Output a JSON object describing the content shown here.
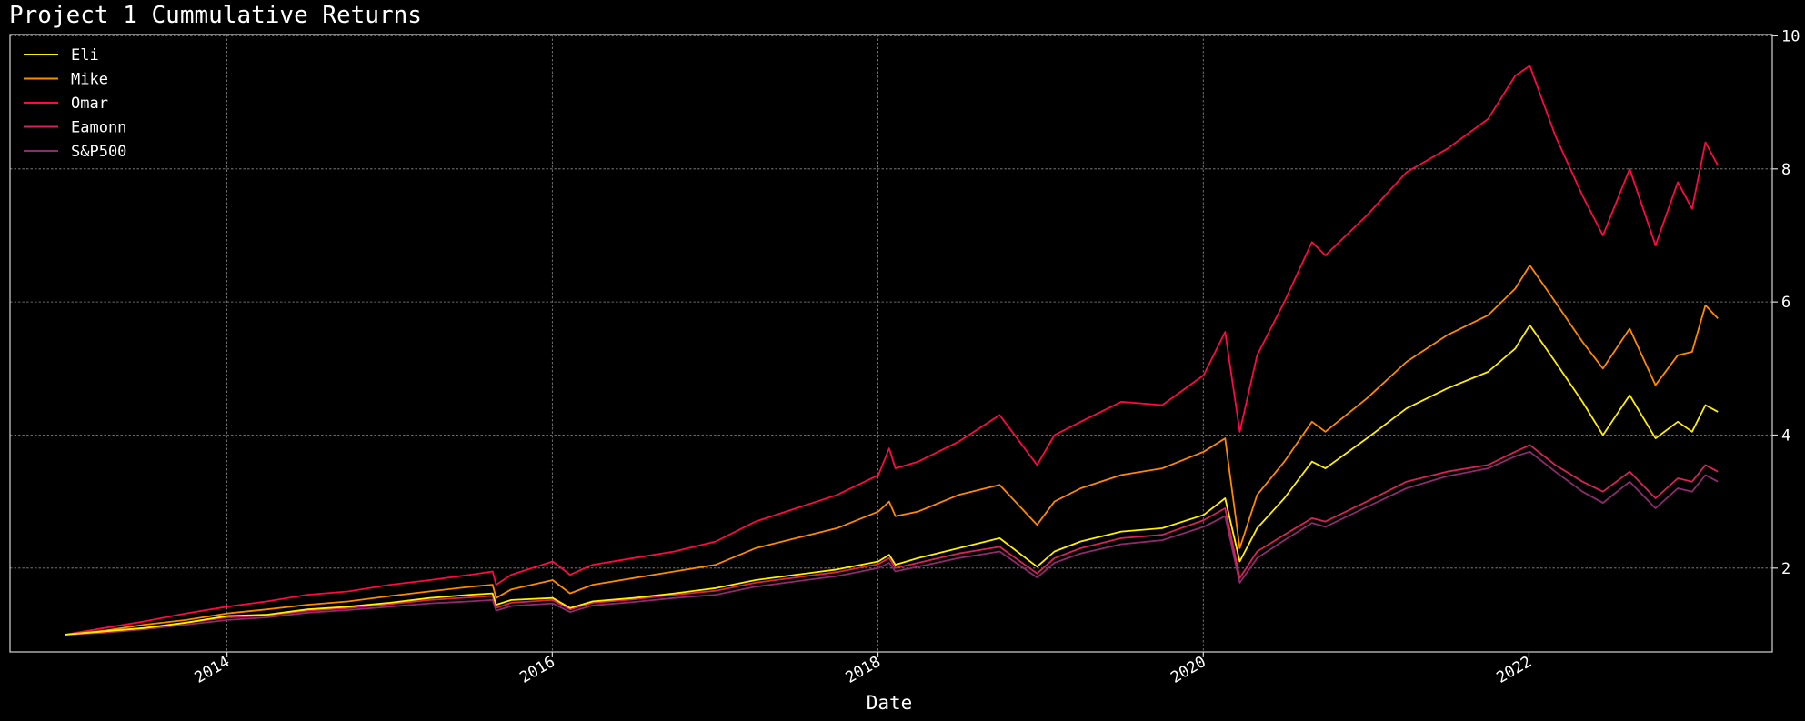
{
  "chart_data": {
    "type": "line",
    "title": "Project 1 Cummulative Returns",
    "xlabel": "Date",
    "ylabel": "",
    "xlim": [
      "2012-09-01",
      "2023-07-01"
    ],
    "ylim": [
      0.74,
      10.02
    ],
    "x_ticks": [
      "2014",
      "2016",
      "2018",
      "2020",
      "2022"
    ],
    "y_ticks": [
      2,
      4,
      6,
      8,
      10
    ],
    "y_axis_position": "right",
    "grid": true,
    "legend_position": "top-left",
    "series": [
      {
        "name": "Eli",
        "color": "#ffee00",
        "x": [
          "2013-01-02",
          "2013-04-01",
          "2013-07-01",
          "2013-10-01",
          "2014-01-02",
          "2014-04-01",
          "2014-07-01",
          "2014-10-01",
          "2015-01-02",
          "2015-04-01",
          "2015-07-01",
          "2015-08-20",
          "2015-08-28",
          "2015-10-01",
          "2016-01-02",
          "2016-02-10",
          "2016-04-01",
          "2016-07-01",
          "2016-10-01",
          "2017-01-02",
          "2017-04-01",
          "2017-07-01",
          "2017-10-01",
          "2018-01-02",
          "2018-01-26",
          "2018-02-09",
          "2018-04-01",
          "2018-07-01",
          "2018-10-01",
          "2018-12-24",
          "2019-02-01",
          "2019-04-01",
          "2019-07-01",
          "2019-10-01",
          "2020-01-02",
          "2020-02-19",
          "2020-03-23",
          "2020-05-01",
          "2020-07-01",
          "2020-09-01",
          "2020-10-01",
          "2021-01-02",
          "2021-04-01",
          "2021-07-01",
          "2021-10-01",
          "2021-12-01",
          "2022-01-03",
          "2022-03-01",
          "2022-05-01",
          "2022-06-16",
          "2022-08-15",
          "2022-10-12",
          "2022-12-01",
          "2023-01-02",
          "2023-02-01",
          "2023-03-01"
        ],
        "y": [
          1.0,
          1.05,
          1.1,
          1.18,
          1.28,
          1.3,
          1.38,
          1.42,
          1.48,
          1.55,
          1.6,
          1.62,
          1.45,
          1.52,
          1.55,
          1.4,
          1.5,
          1.55,
          1.62,
          1.7,
          1.82,
          1.9,
          1.98,
          2.1,
          2.2,
          2.05,
          2.15,
          2.3,
          2.45,
          2.02,
          2.25,
          2.4,
          2.55,
          2.6,
          2.8,
          3.05,
          2.1,
          2.6,
          3.05,
          3.6,
          3.5,
          3.95,
          4.4,
          4.7,
          4.95,
          5.3,
          5.65,
          5.1,
          4.5,
          4.0,
          4.6,
          3.95,
          4.2,
          4.05,
          4.45,
          4.35
        ]
      },
      {
        "name": "Mike",
        "color": "#ff8800",
        "x": [
          "2013-01-02",
          "2013-04-01",
          "2013-07-01",
          "2013-10-01",
          "2014-01-02",
          "2014-04-01",
          "2014-07-01",
          "2014-10-01",
          "2015-01-02",
          "2015-04-01",
          "2015-07-01",
          "2015-08-20",
          "2015-08-28",
          "2015-10-01",
          "2016-01-02",
          "2016-02-10",
          "2016-04-01",
          "2016-07-01",
          "2016-10-01",
          "2017-01-02",
          "2017-04-01",
          "2017-07-01",
          "2017-10-01",
          "2018-01-02",
          "2018-01-26",
          "2018-02-09",
          "2018-04-01",
          "2018-07-01",
          "2018-10-01",
          "2018-12-24",
          "2019-02-01",
          "2019-04-01",
          "2019-07-01",
          "2019-10-01",
          "2020-01-02",
          "2020-02-19",
          "2020-03-23",
          "2020-05-01",
          "2020-07-01",
          "2020-09-01",
          "2020-10-01",
          "2021-01-02",
          "2021-04-01",
          "2021-07-01",
          "2021-10-01",
          "2021-12-01",
          "2022-01-03",
          "2022-03-01",
          "2022-05-01",
          "2022-06-16",
          "2022-08-15",
          "2022-10-12",
          "2022-12-01",
          "2023-01-02",
          "2023-02-01",
          "2023-03-01"
        ],
        "y": [
          1.0,
          1.06,
          1.15,
          1.22,
          1.32,
          1.38,
          1.45,
          1.5,
          1.58,
          1.65,
          1.72,
          1.75,
          1.55,
          1.68,
          1.82,
          1.62,
          1.75,
          1.85,
          1.95,
          2.05,
          2.3,
          2.45,
          2.6,
          2.85,
          3.0,
          2.78,
          2.85,
          3.1,
          3.25,
          2.65,
          3.0,
          3.2,
          3.4,
          3.5,
          3.75,
          3.95,
          2.3,
          3.1,
          3.6,
          4.2,
          4.05,
          4.55,
          5.1,
          5.5,
          5.8,
          6.2,
          6.55,
          6.0,
          5.4,
          5.0,
          5.6,
          4.75,
          5.2,
          5.25,
          5.95,
          5.75
        ]
      },
      {
        "name": "Omar",
        "color": "#ff0844",
        "x": [
          "2013-01-02",
          "2013-04-01",
          "2013-07-01",
          "2013-10-01",
          "2014-01-02",
          "2014-04-01",
          "2014-07-01",
          "2014-10-01",
          "2015-01-02",
          "2015-04-01",
          "2015-07-01",
          "2015-08-20",
          "2015-08-28",
          "2015-10-01",
          "2016-01-02",
          "2016-02-10",
          "2016-04-01",
          "2016-07-01",
          "2016-10-01",
          "2017-01-02",
          "2017-04-01",
          "2017-07-01",
          "2017-10-01",
          "2018-01-02",
          "2018-01-26",
          "2018-02-09",
          "2018-04-01",
          "2018-07-01",
          "2018-10-01",
          "2018-12-24",
          "2019-02-01",
          "2019-04-01",
          "2019-07-01",
          "2019-10-01",
          "2020-01-02",
          "2020-02-19",
          "2020-03-23",
          "2020-05-01",
          "2020-07-01",
          "2020-09-01",
          "2020-10-01",
          "2021-01-02",
          "2021-04-01",
          "2021-07-01",
          "2021-10-01",
          "2021-12-01",
          "2022-01-03",
          "2022-03-01",
          "2022-05-01",
          "2022-06-16",
          "2022-08-15",
          "2022-10-12",
          "2022-12-01",
          "2023-01-02",
          "2023-02-01",
          "2023-03-01"
        ],
        "y": [
          1.0,
          1.1,
          1.2,
          1.32,
          1.42,
          1.5,
          1.6,
          1.65,
          1.75,
          1.82,
          1.9,
          1.95,
          1.75,
          1.9,
          2.1,
          1.9,
          2.05,
          2.15,
          2.25,
          2.4,
          2.7,
          2.9,
          3.1,
          3.4,
          3.8,
          3.5,
          3.6,
          3.9,
          4.3,
          3.55,
          4.0,
          4.2,
          4.5,
          4.45,
          4.9,
          5.55,
          4.05,
          5.2,
          6.0,
          6.9,
          6.7,
          7.3,
          7.95,
          8.3,
          8.75,
          9.4,
          9.55,
          8.5,
          7.6,
          7.0,
          8.0,
          6.85,
          7.8,
          7.4,
          8.4,
          8.05
        ]
      },
      {
        "name": "Eamonn",
        "color": "#d8225a",
        "x": [
          "2013-01-02",
          "2013-04-01",
          "2013-07-01",
          "2013-10-01",
          "2014-01-02",
          "2014-04-01",
          "2014-07-01",
          "2014-10-01",
          "2015-01-02",
          "2015-04-01",
          "2015-07-01",
          "2015-08-20",
          "2015-08-28",
          "2015-10-01",
          "2016-01-02",
          "2016-02-10",
          "2016-04-01",
          "2016-07-01",
          "2016-10-01",
          "2017-01-02",
          "2017-04-01",
          "2017-07-01",
          "2017-10-01",
          "2018-01-02",
          "2018-01-26",
          "2018-02-09",
          "2018-04-01",
          "2018-07-01",
          "2018-10-01",
          "2018-12-24",
          "2019-02-01",
          "2019-04-01",
          "2019-07-01",
          "2019-10-01",
          "2020-01-02",
          "2020-02-19",
          "2020-03-23",
          "2020-05-01",
          "2020-07-01",
          "2020-09-01",
          "2020-10-01",
          "2021-01-02",
          "2021-04-01",
          "2021-07-01",
          "2021-10-01",
          "2021-12-01",
          "2022-01-03",
          "2022-03-01",
          "2022-05-01",
          "2022-06-16",
          "2022-08-15",
          "2022-10-12",
          "2022-12-01",
          "2023-01-02",
          "2023-02-01",
          "2023-03-01"
        ],
        "y": [
          1.0,
          1.04,
          1.1,
          1.18,
          1.26,
          1.29,
          1.36,
          1.4,
          1.46,
          1.52,
          1.56,
          1.58,
          1.4,
          1.48,
          1.52,
          1.38,
          1.48,
          1.53,
          1.6,
          1.66,
          1.78,
          1.86,
          1.94,
          2.06,
          2.15,
          2.0,
          2.08,
          2.22,
          2.32,
          1.92,
          2.15,
          2.3,
          2.45,
          2.5,
          2.72,
          2.9,
          1.85,
          2.25,
          2.5,
          2.75,
          2.7,
          3.0,
          3.3,
          3.45,
          3.55,
          3.75,
          3.85,
          3.55,
          3.3,
          3.15,
          3.45,
          3.05,
          3.35,
          3.3,
          3.55,
          3.45
        ]
      },
      {
        "name": "S&P500",
        "color": "#8e2a6e",
        "x": [
          "2013-01-02",
          "2013-04-01",
          "2013-07-01",
          "2013-10-01",
          "2014-01-02",
          "2014-04-01",
          "2014-07-01",
          "2014-10-01",
          "2015-01-02",
          "2015-04-01",
          "2015-07-01",
          "2015-08-20",
          "2015-08-28",
          "2015-10-01",
          "2016-01-02",
          "2016-02-10",
          "2016-04-01",
          "2016-07-01",
          "2016-10-01",
          "2017-01-02",
          "2017-04-01",
          "2017-07-01",
          "2017-10-01",
          "2018-01-02",
          "2018-01-26",
          "2018-02-09",
          "2018-04-01",
          "2018-07-01",
          "2018-10-01",
          "2018-12-24",
          "2019-02-01",
          "2019-04-01",
          "2019-07-01",
          "2019-10-01",
          "2020-01-02",
          "2020-02-19",
          "2020-03-23",
          "2020-05-01",
          "2020-07-01",
          "2020-09-01",
          "2020-10-01",
          "2021-01-02",
          "2021-04-01",
          "2021-07-01",
          "2021-10-01",
          "2021-12-01",
          "2022-01-03",
          "2022-03-01",
          "2022-05-01",
          "2022-06-16",
          "2022-08-15",
          "2022-10-12",
          "2022-12-01",
          "2023-01-02",
          "2023-02-01",
          "2023-03-01"
        ],
        "y": [
          1.0,
          1.03,
          1.08,
          1.15,
          1.22,
          1.26,
          1.33,
          1.37,
          1.42,
          1.47,
          1.5,
          1.52,
          1.36,
          1.43,
          1.47,
          1.34,
          1.44,
          1.49,
          1.55,
          1.6,
          1.72,
          1.8,
          1.88,
          2.0,
          2.08,
          1.95,
          2.02,
          2.15,
          2.25,
          1.86,
          2.08,
          2.22,
          2.36,
          2.42,
          2.62,
          2.78,
          1.78,
          2.15,
          2.42,
          2.68,
          2.62,
          2.92,
          3.2,
          3.38,
          3.5,
          3.68,
          3.75,
          3.45,
          3.15,
          2.98,
          3.3,
          2.9,
          3.2,
          3.15,
          3.4,
          3.3
        ]
      }
    ]
  }
}
